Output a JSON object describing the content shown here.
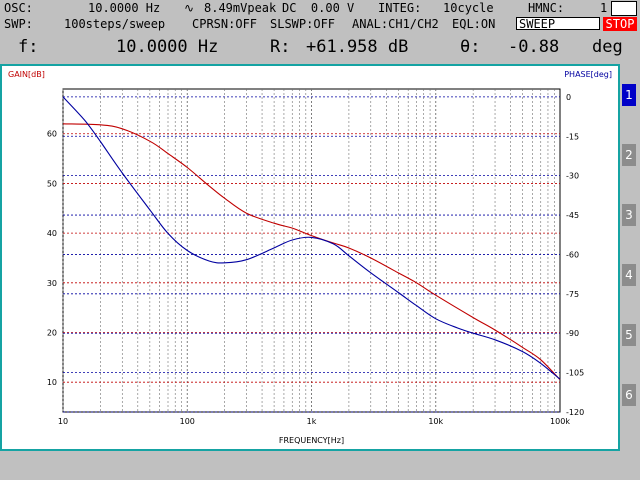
{
  "status": {
    "osc_label": "OSC:",
    "osc_freq": "10.0000 Hz",
    "osc_wave": "∿",
    "osc_amp": "8.49mVpeak",
    "osc_dc": "DC  0.00 V",
    "integ": "INTEG:   10cycle",
    "hmnc_label": "HMNC:",
    "hmnc_value": "1",
    "swp_label": "SWP:",
    "swp_steps": "100steps/sweep",
    "cprsn": "CPRSN:OFF",
    "slswp": "SLSWP:OFF",
    "anal": "ANAL:CH1/CH2",
    "eql": "EQL:ON",
    "sweep_button": "SWEEP",
    "stop_button": "STOP"
  },
  "readout": {
    "f_label": "f:",
    "f_value": "10.0000 Hz",
    "r_label": "R:",
    "r_value": "+61.958 dB",
    "theta_label": "θ:",
    "theta_value": "-0.88",
    "theta_unit": "deg"
  },
  "tabs": [
    "1",
    "2",
    "3",
    "4",
    "5",
    "6"
  ],
  "active_tab": 0,
  "colors": {
    "panel_border": "#15a3a3",
    "gain_color": "#c00000",
    "phase_color": "#0000a0",
    "stop_bg": "#ff0000",
    "tab_active": "#0000c8",
    "tab_inactive": "#8c8c8c"
  },
  "chart_data": {
    "type": "line",
    "x_scale": "log",
    "xlabel": "FREQUENCY[Hz]",
    "ylabel_left": "GAIN[dB]",
    "ylabel_right": "PHASE[deg]",
    "xlim": [
      10,
      100000
    ],
    "ylim_left": [
      4,
      69
    ],
    "ylim_right": [
      -120,
      3.0
    ],
    "x_ticks": [
      "10",
      "100",
      "1k",
      "10k",
      "100k"
    ],
    "y_ticks_left": [
      10,
      20,
      30,
      40,
      50,
      60
    ],
    "y_ticks_right": [
      0,
      -15,
      -30,
      -45,
      -60,
      -75,
      -90,
      -105,
      -120
    ],
    "grid": true,
    "series": [
      {
        "axis": "left",
        "color": "#c00000",
        "x": [
          10,
          20,
          30,
          50,
          70,
          100,
          150,
          200,
          300,
          500,
          700,
          1000,
          1500,
          2000,
          3000,
          5000,
          7000,
          10000,
          20000,
          30000,
          50000,
          70000,
          100000
        ],
        "y": [
          62.0,
          61.8,
          61.0,
          58.5,
          56.0,
          53.2,
          49.5,
          47.0,
          44.0,
          42.0,
          41.0,
          39.5,
          38.0,
          37.0,
          35.0,
          32.0,
          30.0,
          27.5,
          23.0,
          20.5,
          17.0,
          14.5,
          10.5
        ]
      },
      {
        "axis": "right",
        "color": "#0000a0",
        "x": [
          10,
          15,
          20,
          30,
          50,
          70,
          100,
          150,
          200,
          300,
          500,
          700,
          1000,
          1500,
          2000,
          3000,
          5000,
          7000,
          10000,
          15000,
          20000,
          30000,
          50000,
          70000,
          100000
        ],
        "y": [
          0,
          -9,
          -17,
          -29,
          -43,
          -52,
          -58.5,
          -62.5,
          -63.2,
          -62.0,
          -57.5,
          -54.5,
          -53.5,
          -56.0,
          -60.5,
          -67.0,
          -74.5,
          -79.5,
          -84.5,
          -88.0,
          -90.0,
          -92.5,
          -97.0,
          -101.5,
          -107.5
        ]
      }
    ]
  }
}
